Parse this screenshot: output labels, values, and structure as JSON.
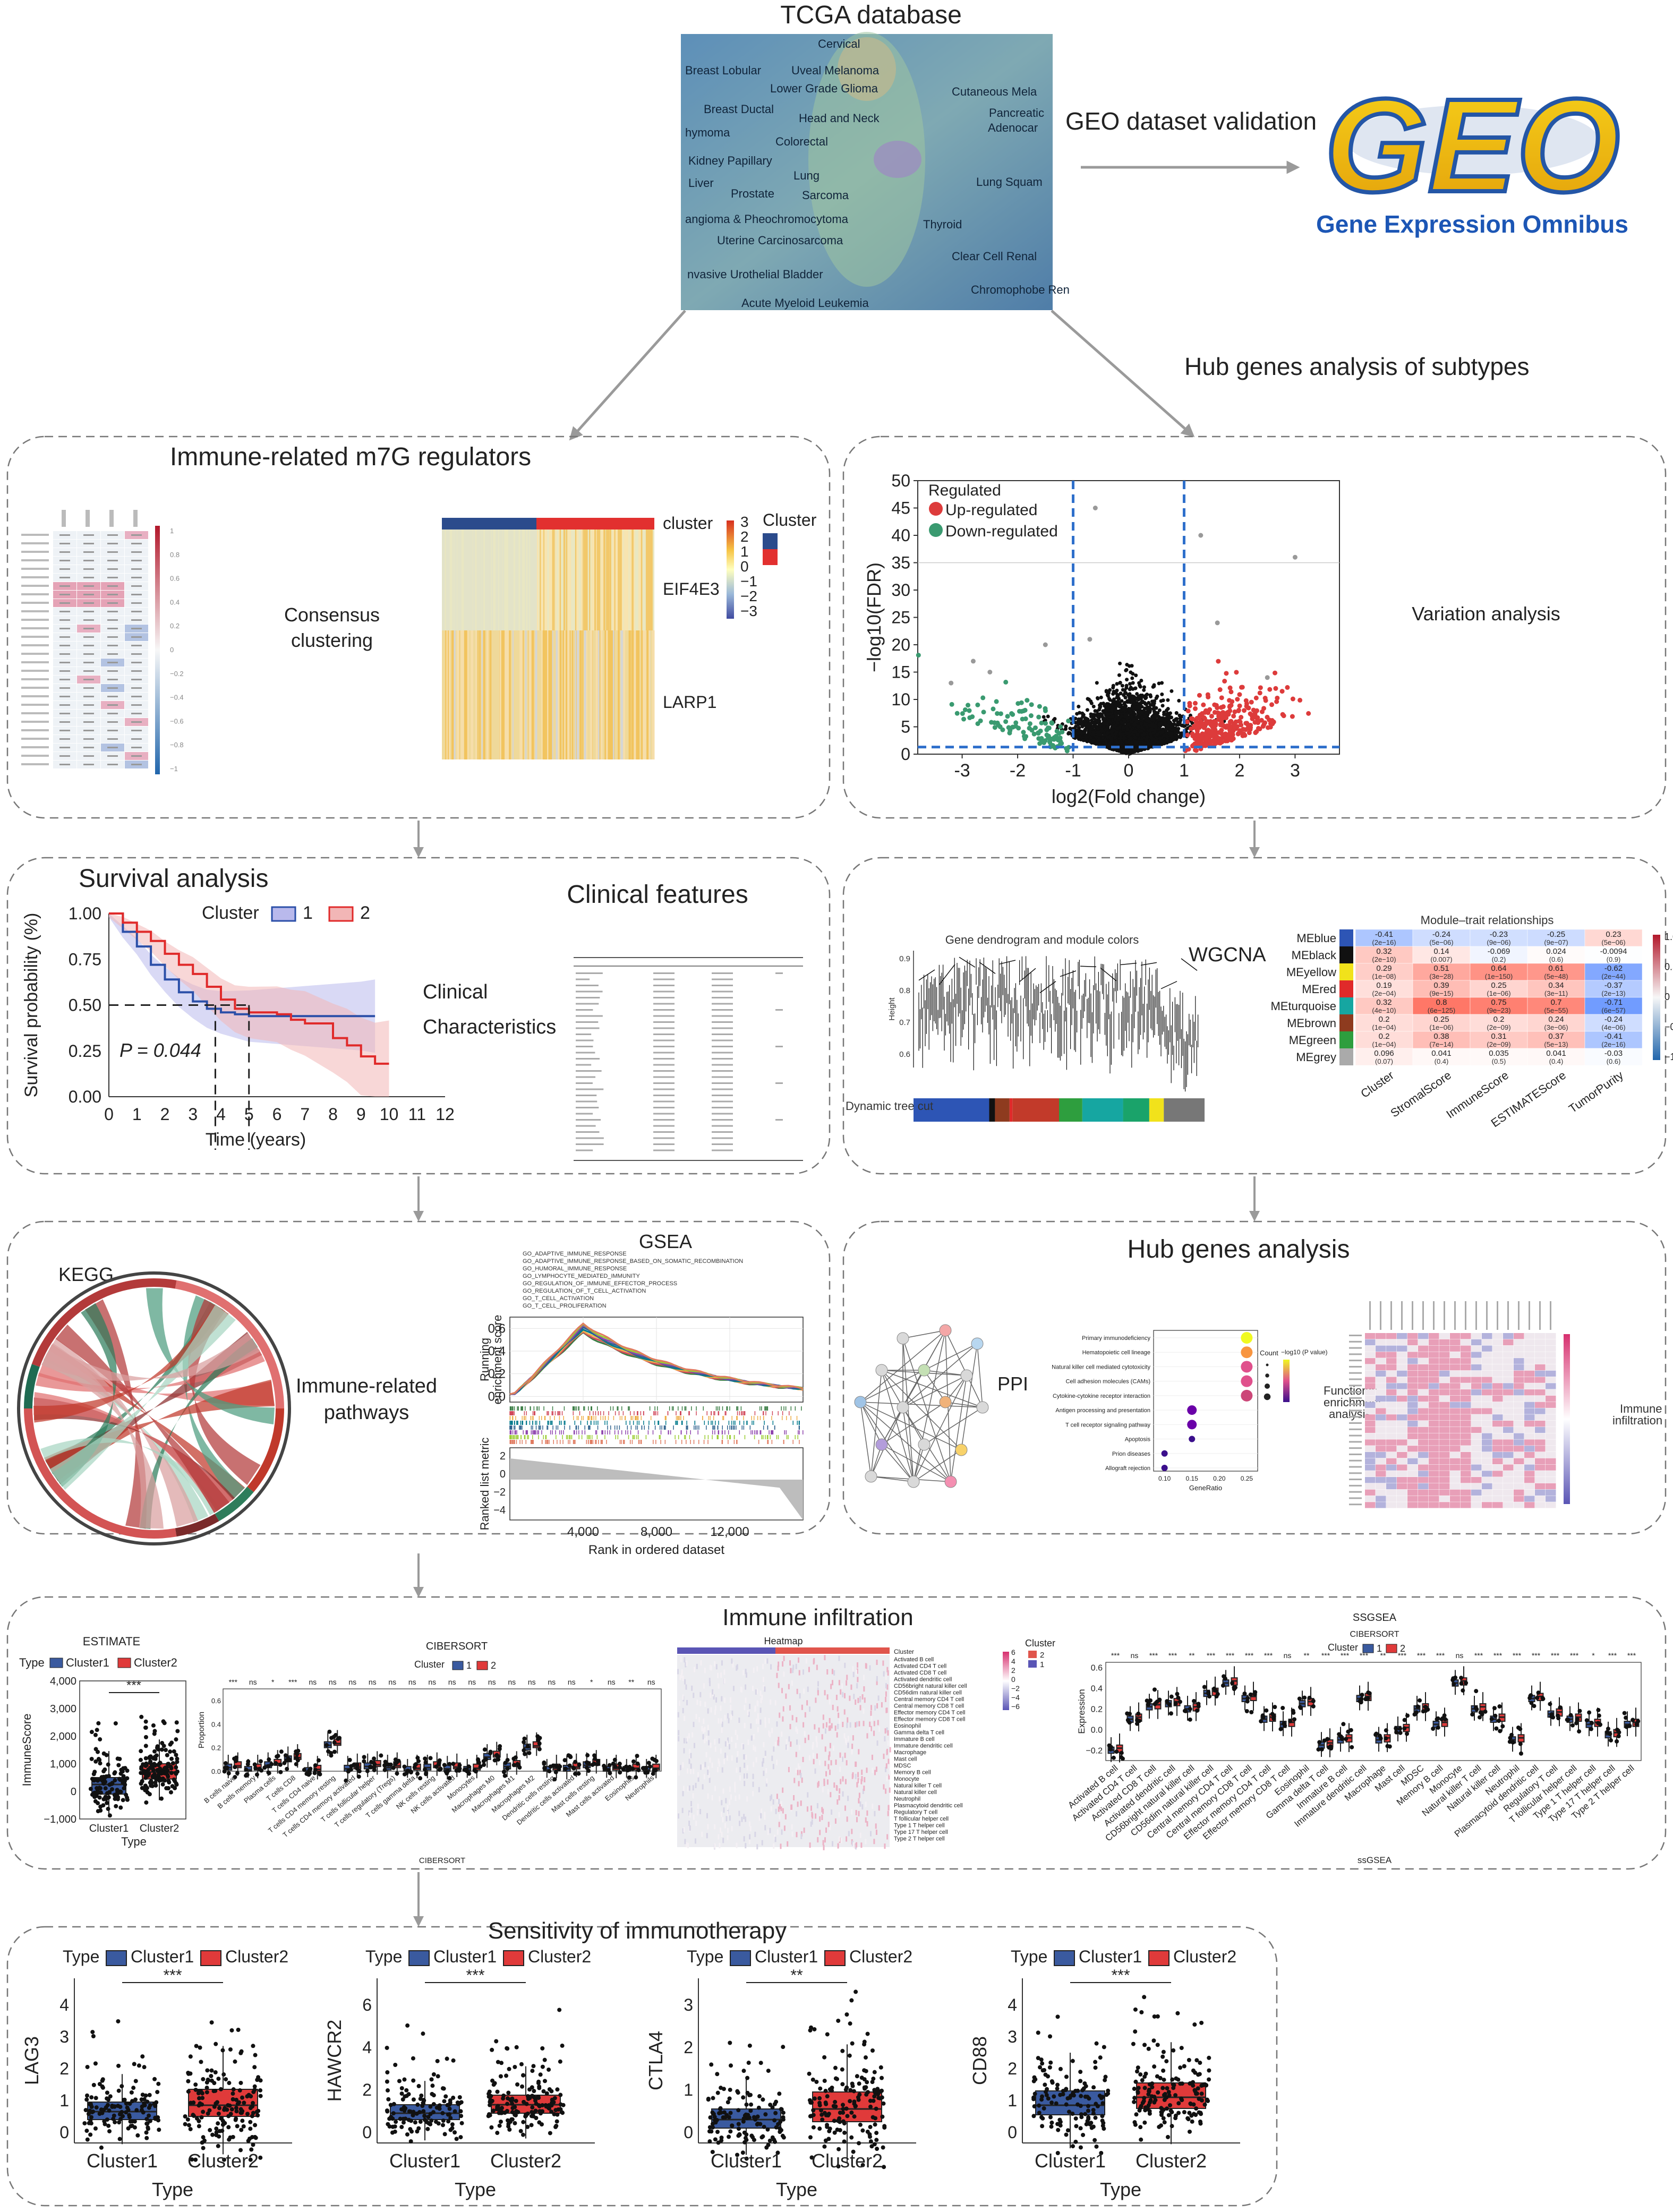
{
  "top": {
    "tcga_title": "TCGA database",
    "tcga_cancers": [
      "Cervical",
      "Breast Lobular",
      "Uveal Melanoma",
      "Lower Grade Glioma",
      "Cutaneous Mela",
      "Breast Ductal",
      "Head and Neck",
      "Pancreatic",
      "Adenocar",
      "hymoma",
      "Colorectal",
      "Kidney Papillary",
      "Lung",
      "Liver",
      "Prostate",
      "Sarcoma",
      "Lung Squam",
      "angioma & Pheochromocytoma",
      "Thyroid",
      "Uterine Carcinosarcoma",
      "Clear Cell Renal",
      "nvasive Urothelial Bladder",
      "Chromophobe Ren",
      "Acute Myeloid Leukemia"
    ],
    "geo_validation": "GEO dataset validation",
    "geo_logo_text": "GEO",
    "geo_subtitle": "Gene Expression Omnibus",
    "hub_subtypes": "Hub genes analysis of subtypes"
  },
  "panels": {
    "m7g": {
      "title": "Immune-related m7G regulators",
      "consensus_line1": "Consensus",
      "consensus_line2": "clustering",
      "hm_cluster": "cluster",
      "hm_gene1": "EIF4E3",
      "hm_gene2": "LARP1",
      "legend_title": "Cluster",
      "scale_ticks": [
        "3",
        "2",
        "1",
        "0",
        "−1",
        "−2",
        "−3"
      ],
      "corr_ticks": [
        "1",
        "0.8",
        "0.6",
        "0.4",
        "0.2",
        "0",
        "−0.2",
        "−0.4",
        "−0.6",
        "−0.8",
        "−1"
      ]
    },
    "volcano": {
      "side_label": "Variation analysis",
      "legend_title": "Regulated",
      "legend_up": "Up-regulated",
      "legend_down": "Down-regulated",
      "ylabel": "−log10(FDR)",
      "xlabel": "log2(Fold change)"
    },
    "survival": {
      "title": "Survival analysis",
      "legend_title": "Cluster",
      "legend_1": "1",
      "legend_2": "2",
      "ylabel": "Survival probability (%)",
      "xlabel": "Time (years)",
      "pvalue": "P = 0.044",
      "clin_line1": "Clinical",
      "clin_line2": "Characteristics",
      "clin_title": "Clinical features"
    },
    "wgcna": {
      "label": "WGCNA",
      "dendro_title": "Gene dendrogram and module colors",
      "dyn_label": "Dynamic tree cut",
      "height_label": "Height",
      "mt_title": "Module–trait relationships",
      "modules": [
        "MEblue",
        "MEblack",
        "MEyellow",
        "MEred",
        "MEturquoise",
        "MEbrown",
        "MEgreen",
        "MEgrey"
      ],
      "traits": [
        "Cluster",
        "StromalScore",
        "ImmuneScore",
        "ESTIMATEScore",
        "TumorPurity"
      ],
      "scale_ticks": [
        "1.0",
        "0.5",
        "0",
        "−0.5",
        "−1.0"
      ]
    },
    "kegg": {
      "label": "KEGG",
      "path_line1": "Immune-related",
      "path_line2": "pathways",
      "gsea_title": "GSEA",
      "gsea_ylabel1": "Running",
      "gsea_ylabel2": "enrichment score",
      "rank_ylabel": "Ranked list metric",
      "rank_xlabel": "Rank in ordered dataset",
      "gsea_genesets": [
        "GO_ADAPTIVE_IMMUNE_RESPONSE",
        "GO_ADAPTIVE_IMMUNE_RESPONSE_BASED_ON_SOMATIC_RECOMBINATION",
        "GO_HUMORAL_IMMUNE_RESPONSE",
        "GO_LYMPHOCYTE_MEDIATED_IMMUNITY",
        "GO_REGULATION_OF_IMMUNE_EFFECTOR_PROCESS",
        "GO_REGULATION_OF_T_CELL_ACTIVATION",
        "GO_T_CELL_ACTIVATION",
        "GO_T_CELL_PROLIFERATION"
      ]
    },
    "hub": {
      "title": "Hub genes analysis",
      "ppi": "PPI",
      "func_line1": "Functional",
      "func_line2": "enrichment",
      "func_line3": "analysis",
      "imm_line1": "Immune",
      "imm_line2": "infiltration",
      "pathways": [
        "Primary immunodeficiency",
        "Hematopoietic cell lineage",
        "Natural killer cell mediated cytotoxicity",
        "Cell adhesion molecules (CAMs)",
        "Cytokine-cytokine receptor interaction",
        "Antigen processing and presentation",
        "T cell receptor signaling pathway",
        "Apoptosis",
        "Prion diseases",
        "Allograft rejection"
      ],
      "gene_ratio_label": "GeneRatio",
      "count_label": "Count",
      "padj_label": "−log10 (P value)"
    },
    "infiltration": {
      "title": "Immune infiltration",
      "estimate": {
        "title": "ESTIMATE",
        "legend_title": "Type",
        "legend_1": "Cluster1",
        "legend_2": "Cluster2",
        "ylabel": "ImmuneScore",
        "xlabel": "Type",
        "sig": "***",
        "categories": [
          "Cluster1",
          "Cluster2"
        ]
      },
      "cibersort": {
        "title": "CIBERSORT",
        "legend_title": "Cluster",
        "legend_1": "1",
        "legend_2": "2",
        "ylabel": "Proportion",
        "xlabel": "CIBERSORT",
        "cells": [
          "B cells naive",
          "B cells memory",
          "Plasma cells",
          "T cells CD8",
          "T cells CD4 naive",
          "T cells CD4 memory resting",
          "T cells CD4 memory activated",
          "T cells follicular helper",
          "T cells regulatory (Tregs)",
          "T cells gamma delta",
          "NK cells resting",
          "NK cells activated",
          "Monocytes",
          "Macrophages M0",
          "Macrophages M1",
          "Macrophages M2",
          "Dendritic cells resting",
          "Dendritic cells activated",
          "Mast cells resting",
          "Mast cells activated",
          "Eosinophils",
          "Neutrophils"
        ],
        "sig": [
          "***",
          "ns",
          "*",
          "***",
          "ns",
          "ns",
          "ns",
          "ns",
          "ns",
          "ns",
          "ns",
          "ns",
          "ns",
          "ns",
          "ns",
          "ns",
          "ns",
          "ns",
          "*",
          "ns",
          "**",
          "ns"
        ]
      },
      "heatmap": {
        "title": "Heatmap",
        "legend_title": "Cluster",
        "cluster_label": "Cluster",
        "scale_ticks": [
          "6",
          "4",
          "2",
          "0",
          "−2",
          "−4",
          "−6"
        ],
        "legend_values": [
          "2",
          "1"
        ],
        "cells": [
          "Activated B cell",
          "Activated CD4 T cell",
          "Activated CD8 T cell",
          "Activated dendritic cell",
          "CD56bright natural killer cell",
          "CD56dim natural killer cell",
          "Central memory CD4 T cell",
          "Central memory CD8 T cell",
          "Effector memory CD4 T cell",
          "Effector memory CD8 T cell",
          "Eosinophil",
          "Gamma delta T cell",
          "Immature B cell",
          "Immature dendritic cell",
          "Macrophage",
          "Mast cell",
          "MDSC",
          "Memory B cell",
          "Monocyte",
          "Natural killer T cell",
          "Natural killer cell",
          "Neutrophil",
          "Plasmacytoid dendritic cell",
          "Regulatory T cell",
          "T follicular helper cell",
          "Type 1 T helper cell",
          "Type 17 T helper cell",
          "Type 2 T helper cell"
        ]
      },
      "ssgsea": {
        "title": "SSGSEA",
        "subtitle": "CIBERSORT",
        "legend_title": "Cluster",
        "legend_1": "1",
        "legend_2": "2",
        "ylabel": "Expression",
        "xlabel": "ssGSEA",
        "sig": [
          "***",
          "ns",
          "***",
          "***",
          "**",
          "***",
          "***",
          "***",
          "***",
          "ns",
          "**",
          "***",
          "***",
          "***",
          "**",
          "***",
          "***",
          "***",
          "ns",
          "***",
          "***",
          "***",
          "***",
          "***",
          "***",
          "*",
          "***",
          "***"
        ],
        "yticks": [
          "0.6",
          "0.4",
          "0.2",
          "0.0",
          "−0.2"
        ]
      }
    },
    "sensitivity": {
      "title": "Sensitivity of immunotherapy",
      "legend_title": "Type",
      "legend_1": "Cluster1",
      "legend_2": "Cluster2",
      "xlabel": "Type",
      "categories": [
        "Cluster1",
        "Cluster2"
      ],
      "genes": [
        {
          "gene": "LAG3",
          "sig": "***",
          "yticks": [
            "4",
            "3",
            "2",
            "1",
            "0"
          ]
        },
        {
          "gene": "HAWCR2",
          "sig": "***",
          "yticks": [
            "6",
            "4",
            "2",
            "0"
          ]
        },
        {
          "gene": "CTLA4",
          "sig": "**",
          "yticks": [
            "3",
            "2",
            "1",
            "0"
          ]
        },
        {
          "gene": "CD88",
          "sig": "***",
          "yticks": [
            "4",
            "3",
            "2",
            "1",
            "0"
          ]
        }
      ]
    }
  },
  "chart_data": [
    {
      "type": "scatter",
      "name_ref": "volcano",
      "xlabel": "log2(Fold change)",
      "ylabel": "−log10(FDR)",
      "xlim": [
        -3.8,
        3.8
      ],
      "ylim": [
        0,
        50
      ],
      "xticks": [
        -3,
        -2,
        -1,
        0,
        1,
        2,
        3
      ],
      "yticks": [
        0,
        5,
        10,
        15,
        20,
        25,
        30,
        35,
        40,
        45,
        50
      ],
      "thresholds": {
        "x": [
          -1,
          1
        ],
        "y": 1.3
      }
    },
    {
      "type": "line",
      "name_ref": "survival",
      "xlabel": "Time (years)",
      "ylabel": "Survival probability (%)",
      "xticks": [
        0,
        1,
        2,
        3,
        4,
        5,
        6,
        7,
        8,
        9,
        10,
        11,
        12
      ],
      "yticks": [
        0,
        0.25,
        0.5,
        0.75,
        1.0
      ],
      "xlim": [
        0,
        12
      ],
      "ylim": [
        0,
        1
      ],
      "series": [
        {
          "name": "1",
          "x": [
            0,
            0.5,
            1,
            1.5,
            2,
            2.5,
            3,
            3.5,
            4,
            4.5,
            5,
            6,
            7,
            8,
            9,
            9.5
          ],
          "y": [
            1.0,
            0.9,
            0.82,
            0.72,
            0.64,
            0.57,
            0.52,
            0.48,
            0.46,
            0.45,
            0.44,
            0.44,
            0.44,
            0.44,
            0.44,
            0.44
          ]
        },
        {
          "name": "2",
          "x": [
            0,
            0.5,
            1,
            1.5,
            2,
            2.5,
            3,
            3.5,
            4,
            4.5,
            5,
            6,
            6.5,
            7,
            8,
            8.5,
            9,
            9.5,
            10
          ],
          "y": [
            1.0,
            0.95,
            0.9,
            0.85,
            0.78,
            0.72,
            0.67,
            0.6,
            0.53,
            0.48,
            0.46,
            0.45,
            0.42,
            0.4,
            0.32,
            0.28,
            0.22,
            0.18,
            0.18
          ]
        }
      ]
    },
    {
      "type": "line",
      "name_ref": "gsea",
      "xlabel": "Rank in ordered dataset",
      "ylabel": "Running enrichment score",
      "xticks": [
        4000,
        8000,
        12000
      ],
      "yticks": [
        0.0,
        0.2,
        0.4,
        0.6
      ],
      "xlim": [
        0,
        16000
      ],
      "ylim": [
        -0.05,
        0.7
      ]
    },
    {
      "type": "table",
      "name_ref": "module_trait",
      "rows": [
        "MEblue",
        "MEblack",
        "MEyellow",
        "MEred",
        "MEturquoise",
        "MEbrown",
        "MEgreen",
        "MEgrey"
      ],
      "cols": [
        "Cluster",
        "StromalScore",
        "ImmuneScore",
        "ESTIMATEScore",
        "TumorPurity"
      ],
      "values": [
        [
          -0.41,
          -0.24,
          -0.23,
          -0.25,
          0.23
        ],
        [
          0.32,
          0.14,
          -0.069,
          0.024,
          -0.0094
        ],
        [
          0.29,
          0.51,
          0.64,
          0.61,
          -0.62
        ],
        [
          0.19,
          0.39,
          0.25,
          0.34,
          -0.37
        ],
        [
          0.32,
          0.8,
          0.75,
          0.7,
          -0.71
        ],
        [
          0.2,
          0.25,
          0.2,
          0.24,
          -0.24
        ],
        [
          0.2,
          0.38,
          0.31,
          0.37,
          -0.41
        ],
        [
          0.096,
          0.041,
          0.035,
          0.041,
          -0.03
        ]
      ],
      "pvalues": [
        [
          "(2e−16)",
          "(5e−06)",
          "(9e−06)",
          "(9e−07)",
          "(5e−06)"
        ],
        [
          "(2e−10)",
          "(0.007)",
          "(0.2)",
          "(0.6)",
          "(0.9)"
        ],
        [
          "(1e−08)",
          "(3e−28)",
          "(1e−150)",
          "(5e−48)",
          "(2e−44)"
        ],
        [
          "(2e−04)",
          "(9e−15)",
          "(1e−06)",
          "(3e−11)",
          "(2e−13)"
        ],
        [
          "(4e−10)",
          "(6e−125)",
          "(9e−23)",
          "(5e−55)",
          "(6e−57)"
        ],
        [
          "(1e−04)",
          "(1e−06)",
          "(2e−09)",
          "(3e−06)",
          "(4e−06)"
        ],
        [
          "(1e−04)",
          "(7e−14)",
          "(2e−09)",
          "(5e−13)",
          "(2e−16)"
        ],
        [
          "(0.07)",
          "(0.4)",
          "(0.5)",
          "(0.4)",
          "(0.6)"
        ]
      ]
    },
    {
      "type": "bar",
      "name_ref": "functional_enrichment",
      "xlabel": "GeneRatio",
      "xticks": [
        0.1,
        0.15,
        0.2,
        0.25
      ],
      "categories": [
        "Primary immunodeficiency",
        "Hematopoietic cell lineage",
        "Natural killer cell mediated cytotoxicity",
        "Cell adhesion molecules (CAMs)",
        "Cytokine-cytokine receptor interaction",
        "Antigen processing and presentation",
        "T cell receptor signaling pathway",
        "Apoptosis",
        "Prion diseases",
        "Allograft rejection"
      ],
      "values": [
        0.25,
        0.25,
        0.25,
        0.25,
        0.25,
        0.15,
        0.15,
        0.15,
        0.1,
        0.1
      ]
    },
    {
      "type": "bar",
      "name_ref": "estimate",
      "categories": [
        "Cluster1",
        "Cluster2"
      ],
      "series": [
        {
          "name": "Cluster1",
          "median": 250,
          "q1": -100,
          "q3": 500
        },
        {
          "name": "Cluster2",
          "median": 700,
          "q1": 450,
          "q3": 1000
        }
      ],
      "yticks": [
        -1000,
        0,
        1000,
        2000,
        3000,
        4000
      ],
      "ylim": [
        -1000,
        4000
      ]
    },
    {
      "type": "bar",
      "name_ref": "sensitivity",
      "categories": [
        "Cluster1",
        "Cluster2"
      ],
      "series": [
        {
          "name": "LAG3",
          "cluster1": {
            "median": 0.65,
            "q1": 0.4,
            "q3": 0.95
          },
          "cluster2": {
            "median": 0.85,
            "q1": 0.5,
            "q3": 1.35
          }
        },
        {
          "name": "HAWCR2",
          "cluster1": {
            "median": 0.9,
            "q1": 0.6,
            "q3": 1.3
          },
          "cluster2": {
            "median": 1.3,
            "q1": 0.9,
            "q3": 1.75
          }
        },
        {
          "name": "CTLA4",
          "cluster1": {
            "median": 0.3,
            "q1": 0.1,
            "q3": 0.55
          },
          "cluster2": {
            "median": 0.55,
            "q1": 0.25,
            "q3": 0.95
          }
        },
        {
          "name": "CD88",
          "cluster1": {
            "median": 0.85,
            "q1": 0.55,
            "q3": 1.3
          },
          "cluster2": {
            "median": 1.1,
            "q1": 0.75,
            "q3": 1.55
          }
        }
      ]
    }
  ]
}
